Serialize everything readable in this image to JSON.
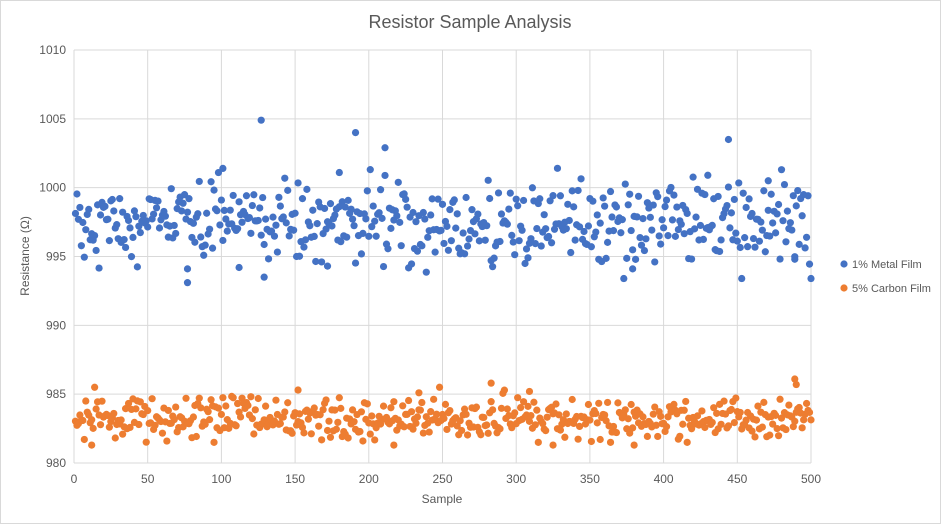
{
  "chart_data": {
    "type": "scatter",
    "title": "Resistor Sample Analysis",
    "xlabel": "Sample",
    "ylabel": "Resistance (Ω)",
    "xlim": [
      0,
      500
    ],
    "ylim": [
      980,
      1010
    ],
    "x_ticks": [
      0,
      50,
      100,
      150,
      200,
      250,
      300,
      350,
      400,
      450,
      500
    ],
    "y_ticks": [
      980,
      985,
      990,
      995,
      1000,
      1005,
      1010
    ],
    "grid": true,
    "legend_position": "right",
    "series": [
      {
        "name": "1% Metal Film",
        "color": "#4472c4",
        "pattern": {
          "count": 500,
          "center": 997.4,
          "spread": 1.5,
          "min": 993.1,
          "max": 1004.9
        },
        "highlights": [
          {
            "x": 127,
            "y": 1004.9
          },
          {
            "x": 191,
            "y": 1004.0
          },
          {
            "x": 444,
            "y": 1003.5
          },
          {
            "x": 211,
            "y": 1002.9
          },
          {
            "x": 101,
            "y": 1001.4
          },
          {
            "x": 430,
            "y": 1000.9
          },
          {
            "x": 180,
            "y": 1001.1
          },
          {
            "x": 471,
            "y": 1000.5
          },
          {
            "x": 129,
            "y": 993.5
          },
          {
            "x": 77,
            "y": 993.1
          },
          {
            "x": 77,
            "y": 994.1
          },
          {
            "x": 112,
            "y": 994.2
          },
          {
            "x": 172,
            "y": 994.3
          },
          {
            "x": 379,
            "y": 994.1
          },
          {
            "x": 489,
            "y": 994.8
          }
        ]
      },
      {
        "name": "5% Carbon Film",
        "color": "#ed7d31",
        "pattern": {
          "count": 500,
          "center": 983.2,
          "spread": 0.75,
          "min": 981.2,
          "max": 986.1
        },
        "highlights": [
          {
            "x": 489,
            "y": 986.1
          },
          {
            "x": 490,
            "y": 985.7
          },
          {
            "x": 283,
            "y": 985.8
          },
          {
            "x": 152,
            "y": 985.3
          },
          {
            "x": 309,
            "y": 985.2
          },
          {
            "x": 234,
            "y": 985.1
          },
          {
            "x": 12,
            "y": 981.3
          },
          {
            "x": 217,
            "y": 981.3
          },
          {
            "x": 325,
            "y": 981.3
          },
          {
            "x": 380,
            "y": 981.3
          }
        ]
      }
    ]
  }
}
